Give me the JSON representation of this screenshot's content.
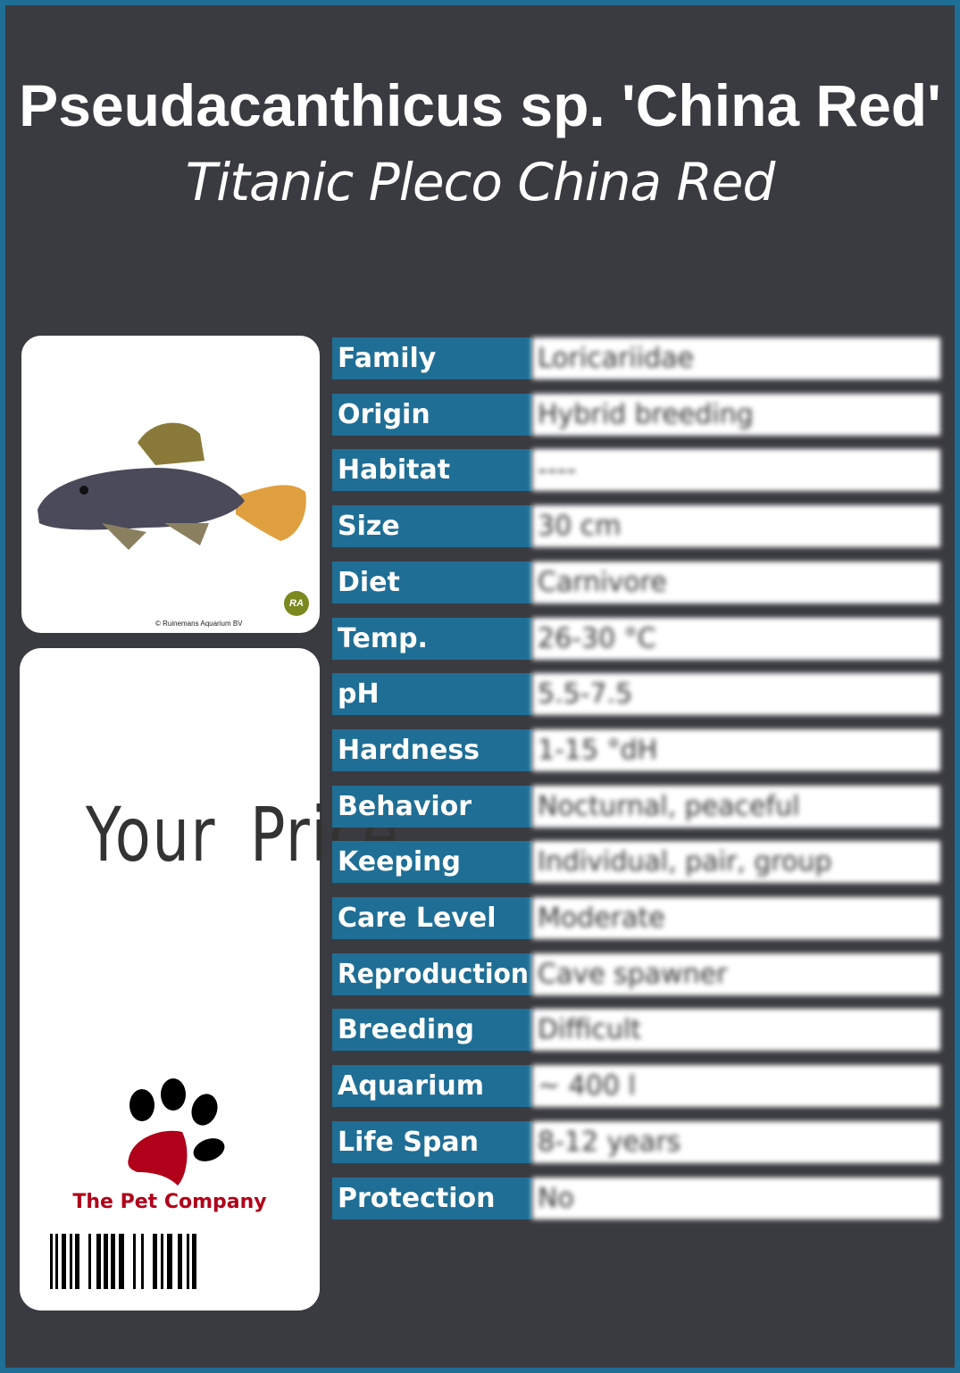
{
  "title": "Pseudacanthicus sp. 'China Red'",
  "subtitle": "Titanic Pleco China Red",
  "photo": {
    "credit": "© Ruinemans Aquarium BV",
    "logo_text": "RA"
  },
  "price_label": "Your Price",
  "brand": {
    "name": "The Pet Company",
    "color": "#b0001a"
  },
  "colors": {
    "accent": "#1f6e95",
    "background": "#3a3b40"
  },
  "specs": [
    {
      "label": "Family",
      "value": "Loricariidae"
    },
    {
      "label": "Origin",
      "value": "Hybrid breeding"
    },
    {
      "label": "Habitat",
      "value": "----"
    },
    {
      "label": "Size",
      "value": "30 cm"
    },
    {
      "label": "Diet",
      "value": "Carnivore"
    },
    {
      "label": "Temp.",
      "value": "26-30 °C"
    },
    {
      "label": "pH",
      "value": "5.5-7.5"
    },
    {
      "label": "Hardness",
      "value": "1-15 °dH"
    },
    {
      "label": "Behavior",
      "value": "Nocturnal, peaceful"
    },
    {
      "label": "Keeping",
      "value": "Individual, pair, group"
    },
    {
      "label": "Care Level",
      "value": "Moderate"
    },
    {
      "label": "Reproduction",
      "value": "Cave spawner"
    },
    {
      "label": "Breeding",
      "value": "Difficult"
    },
    {
      "label": "Aquarium",
      "value": "~ 400 l"
    },
    {
      "label": "Life Span",
      "value": "8-12 years"
    },
    {
      "label": "Protection",
      "value": "No"
    }
  ]
}
